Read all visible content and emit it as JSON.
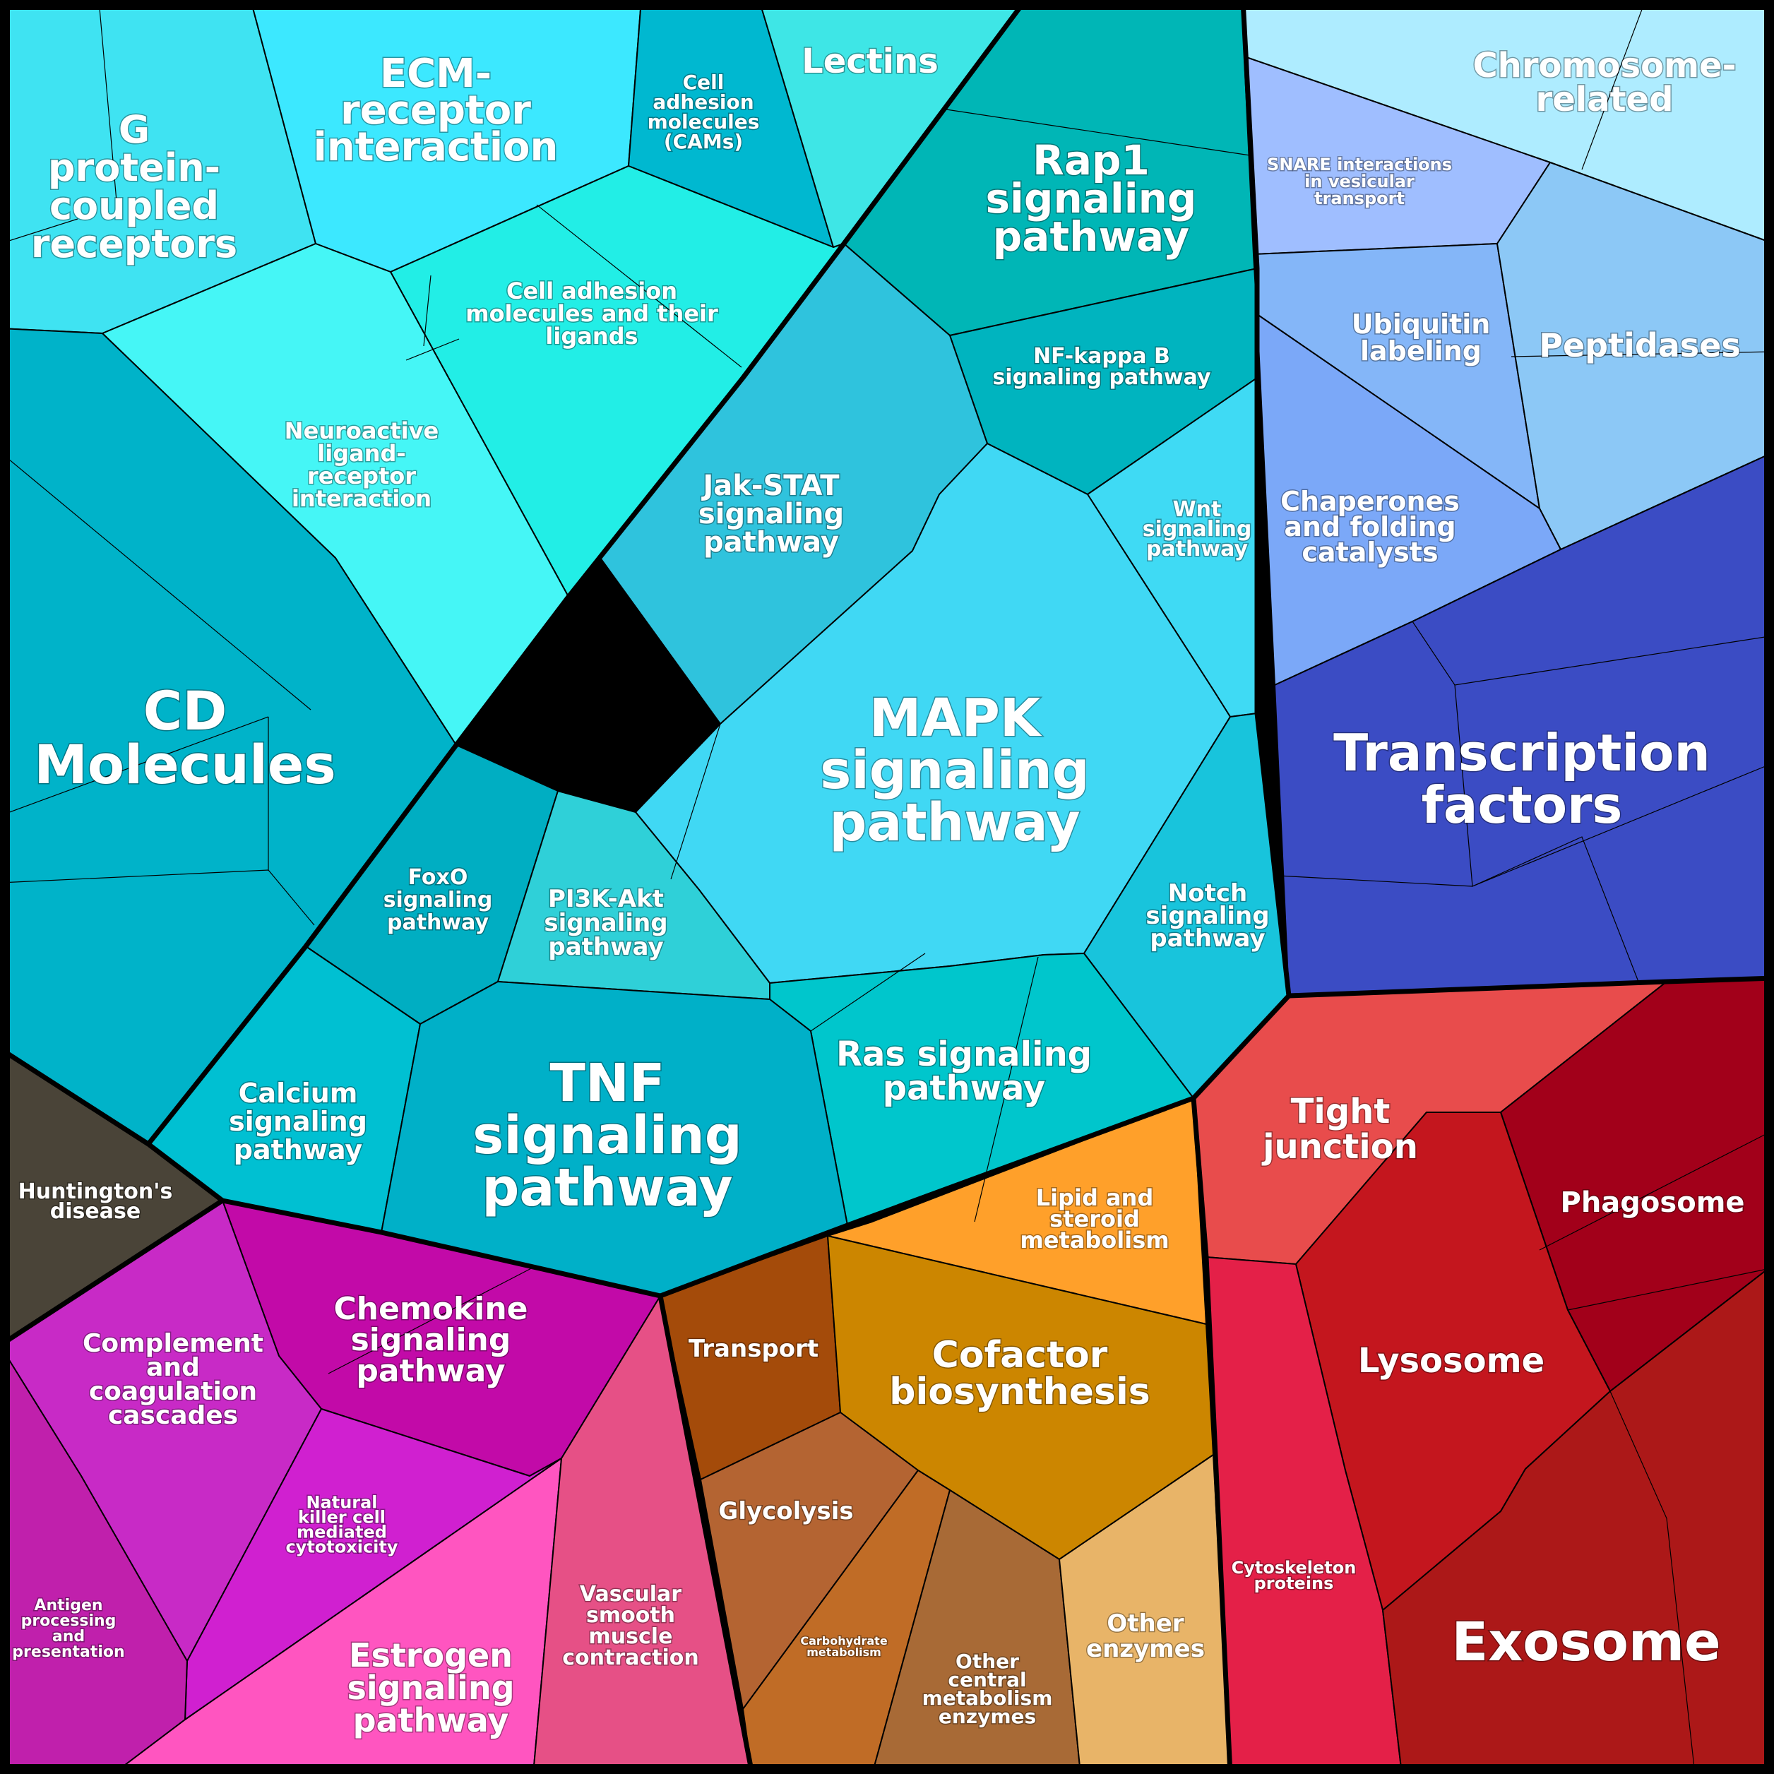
{
  "diagram": {
    "type": "voronoi-treemap",
    "groups": [
      {
        "name": "signaling",
        "cells": [
          {
            "key": "g_protein",
            "label": "G protein-coupled receptors",
            "lines": [
              "G",
              "protein-",
              "coupled",
              "receptors"
            ],
            "color": "#3fe3f2"
          },
          {
            "key": "ecm",
            "label": "ECM-receptor interaction",
            "lines": [
              "ECM-",
              "receptor",
              "interaction"
            ],
            "color": "#3ce8ff"
          },
          {
            "key": "cams",
            "label": "Cell adhesion molecules (CAMs)",
            "lines": [
              "Cell",
              "adhesion",
              "molecules",
              "(CAMs)"
            ],
            "color": "#00b8d0"
          },
          {
            "key": "lectins",
            "label": "Lectins",
            "lines": [
              "Lectins"
            ],
            "color": "#3ee6e6"
          },
          {
            "key": "rap1",
            "label": "Rap1 signaling pathway",
            "lines": [
              "Rap1",
              "signaling",
              "pathway"
            ],
            "color": "#00b6b6"
          },
          {
            "key": "cell_adhesion_ligands",
            "label": "Cell adhesion molecules and their ligands",
            "lines": [
              "Cell adhesion",
              "molecules and their",
              "ligands"
            ],
            "color": "#22eee6"
          },
          {
            "key": "neuroactive",
            "label": "Neuroactive ligand-receptor interaction",
            "lines": [
              "Neuroactive",
              "ligand-",
              "receptor",
              "interaction"
            ],
            "color": "#45f6f6"
          },
          {
            "key": "nfkb",
            "label": "NF-kappa B signaling pathway",
            "lines": [
              "NF-kappa B",
              "signaling pathway"
            ],
            "color": "#00b4bf"
          },
          {
            "key": "jakstat",
            "label": "Jak-STAT signaling pathway",
            "lines": [
              "Jak-STAT",
              "signaling",
              "pathway"
            ],
            "color": "#2fc3dd"
          },
          {
            "key": "wnt",
            "label": "Wnt signaling pathway",
            "lines": [
              "Wnt",
              "signaling",
              "pathway"
            ],
            "color": "#3fdaf4"
          },
          {
            "key": "cd",
            "label": "CD Molecules",
            "lines": [
              "CD",
              "Molecules"
            ],
            "color": "#00b3c9"
          },
          {
            "key": "mapk",
            "label": "MAPK signaling pathway",
            "lines": [
              "MAPK",
              "signaling",
              "pathway"
            ],
            "color": "#40d8f4"
          },
          {
            "key": "foxo",
            "label": "FoxO signaling pathway",
            "lines": [
              "FoxO",
              "signaling",
              "pathway"
            ],
            "color": "#00aec2"
          },
          {
            "key": "pi3k",
            "label": "PI3K-Akt signaling pathway",
            "lines": [
              "PI3K-Akt",
              "signaling",
              "pathway"
            ],
            "color": "#2fd0d8"
          },
          {
            "key": "notch",
            "label": "Notch signaling pathway",
            "lines": [
              "Notch",
              "signaling",
              "pathway"
            ],
            "color": "#18c4dc"
          },
          {
            "key": "ras",
            "label": "Ras signaling pathway",
            "lines": [
              "Ras signaling",
              "pathway"
            ],
            "color": "#00c6cc"
          },
          {
            "key": "calcium",
            "label": "Calcium signaling pathway",
            "lines": [
              "Calcium",
              "signaling",
              "pathway"
            ],
            "color": "#00c0d2"
          },
          {
            "key": "tnf",
            "label": "TNF signaling pathway",
            "lines": [
              "TNF",
              "signaling",
              "pathway"
            ],
            "color": "#00b0c8"
          }
        ]
      },
      {
        "name": "proteins",
        "cells": [
          {
            "key": "chromosome",
            "label": "Chromosome-related",
            "lines": [
              "Chromosome-",
              "related"
            ],
            "color": "#aeecff"
          },
          {
            "key": "snare",
            "label": "SNARE interactions in vesicular transport",
            "lines": [
              "SNARE interactions",
              "in vesicular",
              "transport"
            ],
            "color": "#9fbeff"
          },
          {
            "key": "ubiquitin",
            "label": "Ubiquitin labeling",
            "lines": [
              "Ubiquitin",
              "labeling"
            ],
            "color": "#84b6f8"
          },
          {
            "key": "peptidases",
            "label": "Peptidases",
            "lines": [
              "Peptidases"
            ],
            "color": "#8cc8f6"
          },
          {
            "key": "chaperones",
            "label": "Chaperones and folding catalysts",
            "lines": [
              "Chaperones",
              "and folding",
              "catalysts"
            ],
            "color": "#7ba8f8"
          },
          {
            "key": "transcription",
            "label": "Transcription factors",
            "lines": [
              "Transcription",
              "factors"
            ],
            "color": "#3b4cc4"
          }
        ]
      },
      {
        "name": "huntington",
        "cells": [
          {
            "key": "huntington",
            "label": "Huntington's disease",
            "lines": [
              "Huntington's",
              "disease"
            ],
            "color": "#4a4438"
          }
        ]
      },
      {
        "name": "immune",
        "cells": [
          {
            "key": "chemokine",
            "label": "Chemokine signaling pathway",
            "lines": [
              "Chemokine",
              "signaling",
              "pathway"
            ],
            "color": "#c20aa8"
          },
          {
            "key": "complement",
            "label": "Complement and coagulation cascades",
            "lines": [
              "Complement",
              "and",
              "coagulation",
              "cascades"
            ],
            "color": "#c82ac6"
          },
          {
            "key": "nk",
            "label": "Natural killer cell mediated cytotoxicity",
            "lines": [
              "Natural",
              "killer cell",
              "mediated",
              "cytotoxicity"
            ],
            "color": "#d020d0"
          },
          {
            "key": "antigen",
            "label": "Antigen processing and presentation",
            "lines": [
              "Antigen",
              "processing",
              "and",
              "presentation"
            ],
            "color": "#c020ac"
          },
          {
            "key": "estrogen",
            "label": "Estrogen signaling pathway",
            "lines": [
              "Estrogen",
              "signaling",
              "pathway"
            ],
            "color": "#ff55c0"
          },
          {
            "key": "vascular",
            "label": "Vascular smooth muscle contraction",
            "lines": [
              "Vascular",
              "smooth",
              "muscle",
              "contraction"
            ],
            "color": "#e65086"
          }
        ]
      },
      {
        "name": "metabolism",
        "cells": [
          {
            "key": "lipid",
            "label": "Lipid and steroid metabolism",
            "lines": [
              "Lipid and",
              "steroid",
              "metabolism"
            ],
            "color": "#ffa02a"
          },
          {
            "key": "transport",
            "label": "Transport",
            "lines": [
              "Transport"
            ],
            "color": "#a44b0a"
          },
          {
            "key": "cofactor",
            "label": "Cofactor biosynthesis",
            "lines": [
              "Cofactor",
              "biosynthesis"
            ],
            "color": "#cc8600"
          },
          {
            "key": "glycolysis",
            "label": "Glycolysis",
            "lines": [
              "Glycolysis"
            ],
            "color": "#b46432"
          },
          {
            "key": "carbohydrate",
            "label": "Carbohydrate metabolism",
            "lines": [
              "Carbohydrate",
              "metabolism"
            ],
            "color": "#c06c26"
          },
          {
            "key": "other_central",
            "label": "Other central metabolism enzymes",
            "lines": [
              "Other",
              "central",
              "metabolism",
              "enzymes"
            ],
            "color": "#a86a36"
          },
          {
            "key": "other_enzymes",
            "label": "Other enzymes",
            "lines": [
              "Other",
              "enzymes"
            ],
            "color": "#e8b468"
          }
        ]
      },
      {
        "name": "vesicle",
        "cells": [
          {
            "key": "tight",
            "label": "Tight junction",
            "lines": [
              "Tight",
              "junction"
            ],
            "color": "#e84c4c"
          },
          {
            "key": "phagosome",
            "label": "Phagosome",
            "lines": [
              "Phagosome"
            ],
            "color": "#a2001a"
          },
          {
            "key": "lysosome",
            "label": "Lysosome",
            "lines": [
              "Lysosome"
            ],
            "color": "#c4161e"
          },
          {
            "key": "cytoskeleton",
            "label": "Cytoskeleton proteins",
            "lines": [
              "Cytoskeleton",
              "proteins"
            ],
            "color": "#e42048"
          },
          {
            "key": "exosome",
            "label": "Exosome",
            "lines": [
              "Exosome"
            ],
            "color": "#ac1818"
          }
        ]
      }
    ]
  }
}
